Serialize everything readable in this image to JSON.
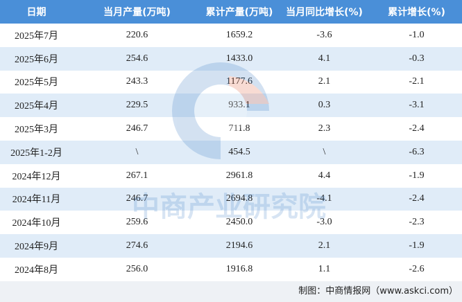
{
  "table": {
    "header": [
      "日期",
      "当月产量(万吨)",
      "累计产量(万吨)",
      "当月同比增长(%)",
      "累计增长(%)"
    ],
    "rows": [
      [
        "2025年7月",
        "220.6",
        "1659.2",
        "-3.6",
        "-1.0"
      ],
      [
        "2025年6月",
        "254.6",
        "1433.0",
        "4.1",
        "-0.3"
      ],
      [
        "2025年5月",
        "243.3",
        "1177.6",
        "2.1",
        "-2.1"
      ],
      [
        "2025年4月",
        "229.5",
        "933.1",
        "0.3",
        "-3.1"
      ],
      [
        "2025年3月",
        "246.7",
        "711.8",
        "2.3",
        "-2.4"
      ],
      [
        "2025年1-2月",
        "\\",
        "454.5",
        "\\",
        "-6.3"
      ],
      [
        "2024年12月",
        "267.1",
        "2961.8",
        "4.4",
        "-1.9"
      ],
      [
        "2024年11月",
        "246.7",
        "2694.8",
        "-4.1",
        "-2.4"
      ],
      [
        "2024年10月",
        "259.6",
        "2450.0",
        "-3.0",
        "-2.3"
      ],
      [
        "2024年9月",
        "274.6",
        "2194.6",
        "2.1",
        "-1.9"
      ],
      [
        "2024年8月",
        "256.0",
        "1916.8",
        "1.1",
        "-2.6"
      ]
    ]
  },
  "watermark": "中商产业研究院",
  "footer": "制图：中商情报网（www.askci.com）"
}
